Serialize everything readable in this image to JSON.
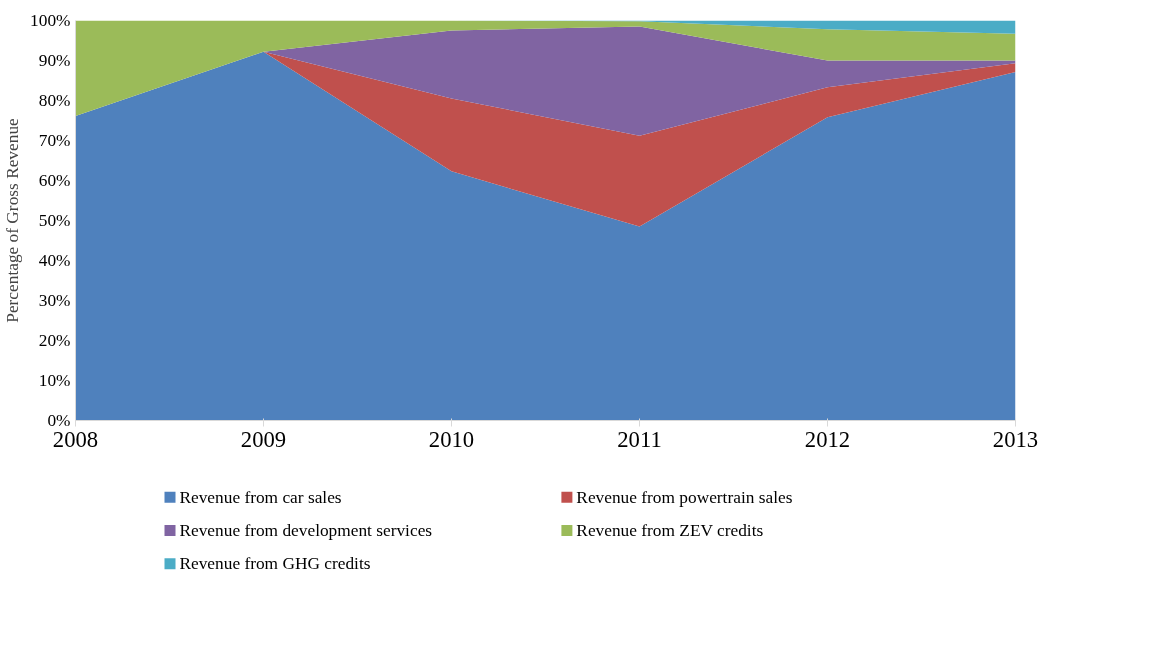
{
  "chart_data": {
    "type": "area",
    "stacked": true,
    "ylabel": "Percentage of Gross Revenue",
    "categories": [
      "2008",
      "2009",
      "2010",
      "2011",
      "2012",
      "2013"
    ],
    "series": [
      {
        "name": "Revenue from car sales",
        "color": "#4f81bd",
        "values": [
          76.1,
          92.2,
          62.3,
          48.5,
          75.8,
          87.1
        ]
      },
      {
        "name": "Revenue from powertrain sales",
        "color": "#c0504d",
        "values": [
          0,
          0,
          18.2,
          22.7,
          7.5,
          2.2
        ]
      },
      {
        "name": "Revenue from development services",
        "color": "#8064a2",
        "values": [
          0,
          0,
          17.0,
          27.3,
          6.7,
          0.7
        ]
      },
      {
        "name": "Revenue from ZEV credits",
        "color": "#9bbb59",
        "values": [
          23.9,
          7.8,
          2.5,
          1.3,
          7.8,
          6.7
        ]
      },
      {
        "name": "Revenue from GHG credits",
        "color": "#4bacc6",
        "values": [
          0,
          0,
          0,
          0.2,
          2.2,
          3.3
        ]
      }
    ],
    "ylim": [
      0,
      100
    ],
    "yticks": [
      {
        "value": 0,
        "label": "0%"
      },
      {
        "value": 10,
        "label": "10%"
      },
      {
        "value": 20,
        "label": "20%"
      },
      {
        "value": 30,
        "label": "30%"
      },
      {
        "value": 40,
        "label": "40%"
      },
      {
        "value": 50,
        "label": "50%"
      },
      {
        "value": 60,
        "label": "60%"
      },
      {
        "value": 70,
        "label": "70%"
      },
      {
        "value": 80,
        "label": "80%"
      },
      {
        "value": 90,
        "label": "90%"
      },
      {
        "value": 100,
        "label": "100%"
      }
    ],
    "grid": false,
    "legend": "bottom"
  }
}
